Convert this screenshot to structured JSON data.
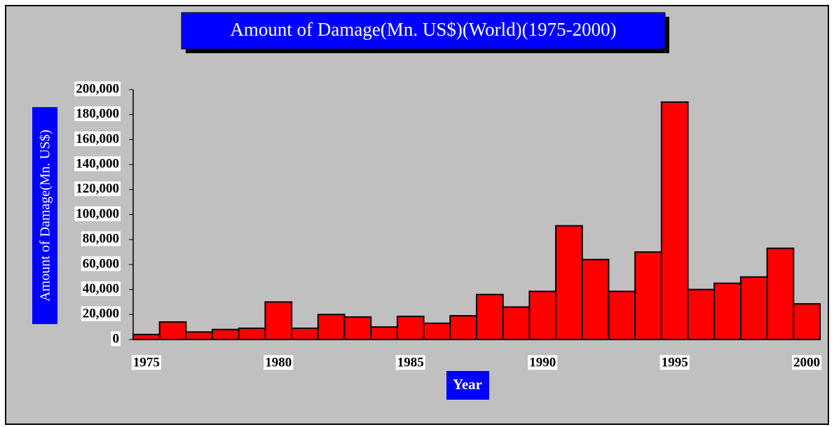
{
  "chart_data": {
    "type": "bar",
    "title": "Amount of Damage(Mn. US$)(World)(1975-2000)",
    "y_label": "Amount of Damage(Mn. US$)",
    "x_label": "Year",
    "categories": [
      "1975",
      null,
      null,
      null,
      null,
      "1980",
      null,
      null,
      null,
      null,
      "1985",
      null,
      null,
      null,
      null,
      "1990",
      null,
      null,
      null,
      null,
      "1995",
      null,
      null,
      null,
      null,
      "2000"
    ],
    "values": [
      4000,
      14000,
      6000,
      8000,
      9000,
      30000,
      9000,
      20000,
      18000,
      10000,
      18500,
      13000,
      19000,
      36000,
      26000,
      38500,
      91000,
      64000,
      38500,
      70000,
      190000,
      40000,
      45000,
      50000,
      73000,
      28500
    ],
    "color": "#ff0000",
    "ylim": [
      0,
      200000
    ],
    "yticks": [
      0,
      {
        "value": 20000,
        "label": "20,000"
      },
      {
        "value": 40000,
        "label": "40,000"
      },
      {
        "value": 60000,
        "label": "60,000"
      },
      {
        "value": 80000,
        "label": "80,000"
      },
      {
        "value": 100000,
        "label": "100,000"
      },
      {
        "value": 120000,
        "label": "120,000"
      },
      {
        "value": 140000,
        "label": "140,000"
      },
      {
        "value": 160000,
        "label": "160,000"
      },
      {
        "value": 180000,
        "label": "180,000"
      },
      {
        "value": 200000,
        "label": "200,000"
      }
    ],
    "grid": false
  }
}
